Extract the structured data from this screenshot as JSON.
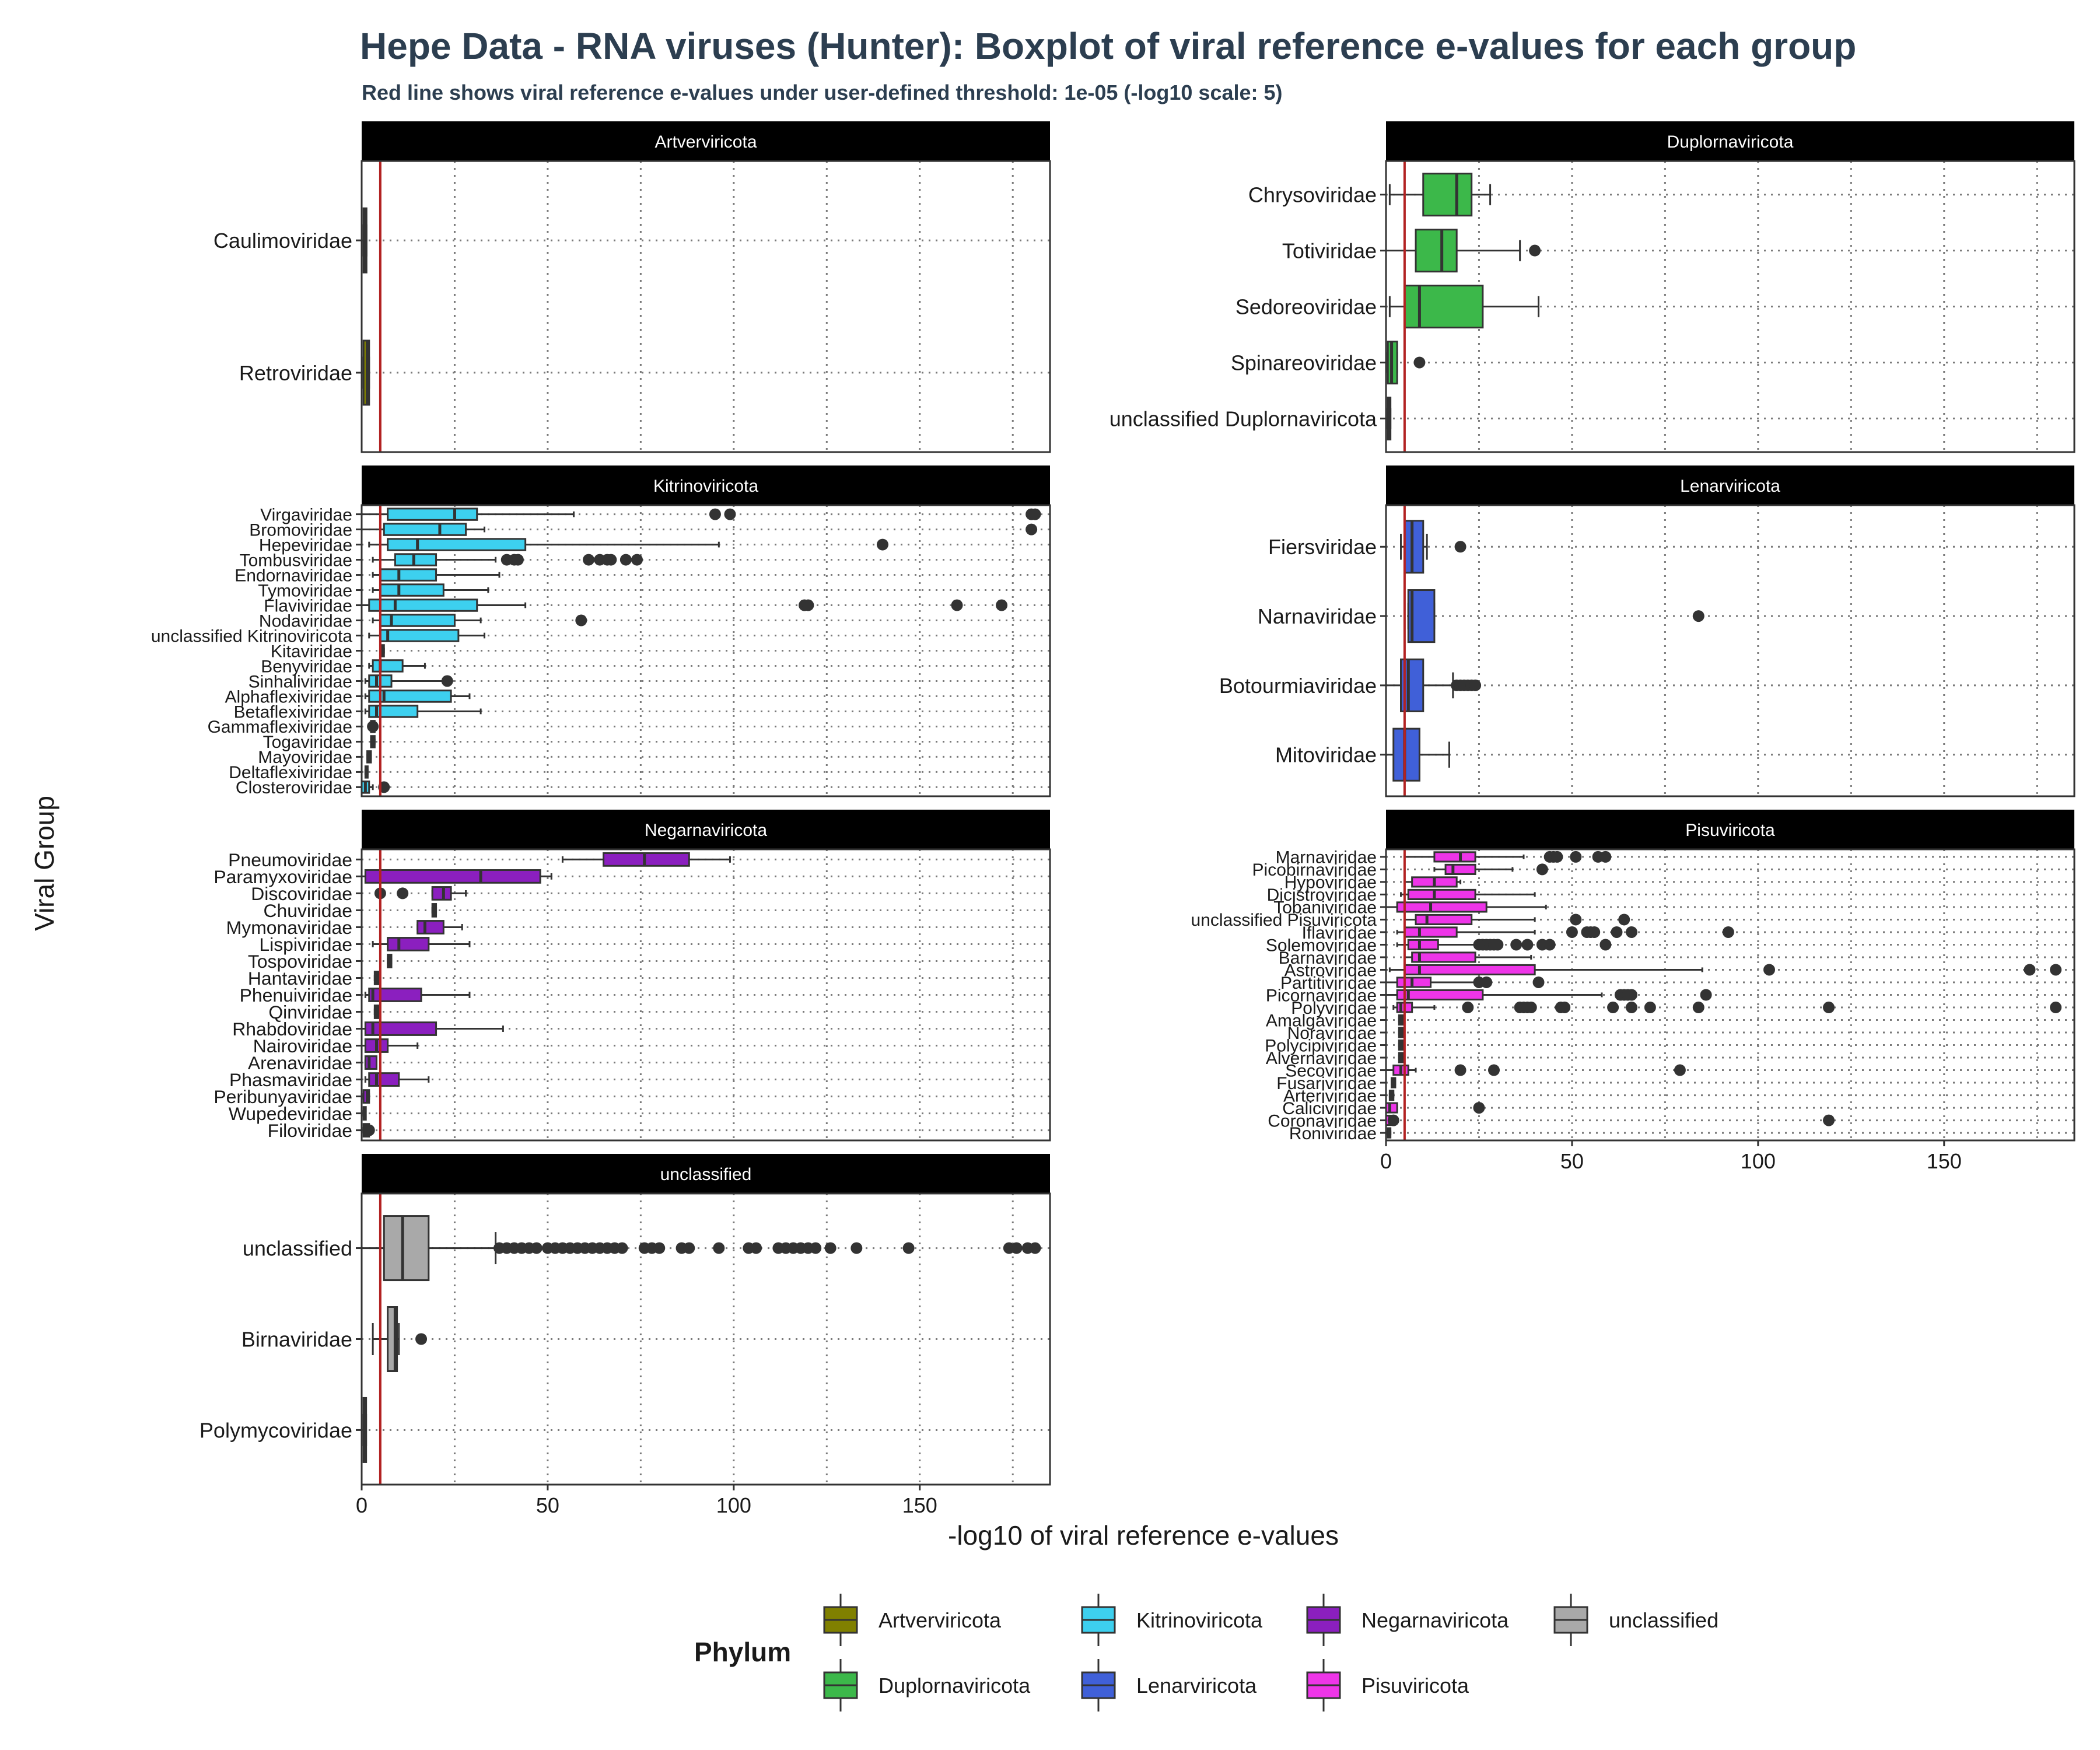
{
  "title": "Hepe Data - RNA viruses (Hunter): Boxplot of viral reference e-values for each group",
  "subtitle": "Red line shows viral reference e-values under user-defined threshold: 1e-05 (-log10 scale: 5)",
  "chart_data": {
    "type": "boxplot",
    "orientation": "horizontal",
    "xlabel": "-log10 of viral reference e-values",
    "ylabel": "Viral Group",
    "xlim": [
      0,
      185
    ],
    "x_ticks": [
      0,
      50,
      100,
      150
    ],
    "threshold": 5,
    "threshold_color": "#b22222",
    "grid": "dotted",
    "legend": {
      "title": "Phylum",
      "position": "bottom",
      "items": [
        {
          "name": "Artverviricota",
          "color": "#808000"
        },
        {
          "name": "Kitrinoviricota",
          "color": "#3dd0ef"
        },
        {
          "name": "Negarnaviricota",
          "color": "#8b1fbf"
        },
        {
          "name": "unclassified",
          "color": "#a9a9a9"
        },
        {
          "name": "Duplornaviricota",
          "color": "#3cb84a"
        },
        {
          "name": "Lenarviricota",
          "color": "#4060d8"
        },
        {
          "name": "Pisuviricota",
          "color": "#ee35e8"
        }
      ]
    },
    "panels": [
      {
        "name": "Artverviricota",
        "color": "#808000",
        "groups": [
          {
            "label": "Caulimoviridae",
            "q1": 0.5,
            "median": 0.8,
            "q3": 1.3,
            "wl": 0.5,
            "wh": 1.3,
            "outliers": []
          },
          {
            "label": "Retroviridae",
            "q1": 0.5,
            "median": 1.5,
            "q3": 2.0,
            "wl": 0.5,
            "wh": 2.0,
            "outliers": []
          }
        ]
      },
      {
        "name": "Duplornaviricota",
        "color": "#3cb84a",
        "groups": [
          {
            "label": "Chrysoviridae",
            "q1": 10,
            "median": 19,
            "q3": 23,
            "wl": 1,
            "wh": 28,
            "outliers": []
          },
          {
            "label": "Totiviridae",
            "q1": 8,
            "median": 15,
            "q3": 19,
            "wl": 0,
            "wh": 36,
            "outliers": [
              40
            ]
          },
          {
            "label": "Sedoreoviridae",
            "q1": 5,
            "median": 9,
            "q3": 26,
            "wl": 1,
            "wh": 41,
            "outliers": []
          },
          {
            "label": "Spinareoviridae",
            "q1": 0.5,
            "median": 1.5,
            "q3": 3,
            "wl": 0.5,
            "wh": 3,
            "outliers": [
              9
            ]
          },
          {
            "label": "unclassified Duplornaviricota",
            "q1": 0.5,
            "median": 0.8,
            "q3": 1.2,
            "wl": 0.5,
            "wh": 1.2,
            "outliers": []
          }
        ]
      },
      {
        "name": "Kitrinoviricota",
        "color": "#3dd0ef",
        "groups": [
          {
            "label": "Virgaviridae",
            "q1": 7,
            "median": 25,
            "q3": 31,
            "wl": 0,
            "wh": 57,
            "outliers": [
              95,
              99,
              180,
              181
            ]
          },
          {
            "label": "Bromoviridae",
            "q1": 6,
            "median": 21,
            "q3": 28,
            "wl": 0,
            "wh": 33,
            "outliers": [
              180
            ]
          },
          {
            "label": "Hepeviridae",
            "q1": 7,
            "median": 15,
            "q3": 44,
            "wl": 2,
            "wh": 96,
            "outliers": [
              140
            ]
          },
          {
            "label": "Tombusviridae",
            "q1": 9,
            "median": 14,
            "q3": 20,
            "wl": 3,
            "wh": 36,
            "outliers": [
              39,
              41,
              42,
              61,
              64,
              66,
              67,
              71,
              74
            ]
          },
          {
            "label": "Endornaviridae",
            "q1": 5,
            "median": 10,
            "q3": 20,
            "wl": 3,
            "wh": 37,
            "outliers": []
          },
          {
            "label": "Tymoviridae",
            "q1": 5,
            "median": 10,
            "q3": 22,
            "wl": 3,
            "wh": 34,
            "outliers": []
          },
          {
            "label": "Flaviviridae",
            "q1": 2,
            "median": 9,
            "q3": 31,
            "wl": 0,
            "wh": 44,
            "outliers": [
              119,
              120,
              160,
              172
            ]
          },
          {
            "label": "Nodaviridae",
            "q1": 5,
            "median": 8,
            "q3": 25,
            "wl": 3,
            "wh": 32,
            "outliers": [
              59
            ]
          },
          {
            "label": "unclassified Kitrinoviricota",
            "q1": 5,
            "median": 7,
            "q3": 26,
            "wl": 2,
            "wh": 33,
            "outliers": []
          },
          {
            "label": "Kitaviridae",
            "q1": 5,
            "median": 5.5,
            "q3": 6,
            "wl": 5,
            "wh": 6,
            "outliers": []
          },
          {
            "label": "Benyviridae",
            "q1": 3,
            "median": 5,
            "q3": 11,
            "wl": 2,
            "wh": 17,
            "outliers": []
          },
          {
            "label": "Sinhaliviridae",
            "q1": 2,
            "median": 4,
            "q3": 8,
            "wl": 1,
            "wh": 22,
            "outliers": [
              23
            ]
          },
          {
            "label": "Alphaflexiviridae",
            "q1": 2,
            "median": 6,
            "q3": 24,
            "wl": 1,
            "wh": 29,
            "outliers": []
          },
          {
            "label": "Betaflexiviridae",
            "q1": 2,
            "median": 4,
            "q3": 15,
            "wl": 1,
            "wh": 32,
            "outliers": []
          },
          {
            "label": "Gammaflexiviridae",
            "q1": 2.5,
            "median": 3,
            "q3": 3.5,
            "wl": 2.5,
            "wh": 3.5,
            "outliers": [
              3
            ]
          },
          {
            "label": "Togaviridae",
            "q1": 2.5,
            "median": 3,
            "q3": 3.5,
            "wl": 2.5,
            "wh": 3.5,
            "outliers": []
          },
          {
            "label": "Mayoviridae",
            "q1": 1.5,
            "median": 2,
            "q3": 2.5,
            "wl": 1.5,
            "wh": 2.5,
            "outliers": []
          },
          {
            "label": "Deltaflexiviridae",
            "q1": 1,
            "median": 1.3,
            "q3": 1.6,
            "wl": 1,
            "wh": 1.6,
            "outliers": []
          },
          {
            "label": "Closteroviridae",
            "q1": 0,
            "median": 1,
            "q3": 2,
            "wl": 0,
            "wh": 3,
            "outliers": [
              6
            ]
          }
        ]
      },
      {
        "name": "Lenarviricota",
        "color": "#4060d8",
        "groups": [
          {
            "label": "Fiersviridae",
            "q1": 5,
            "median": 7,
            "q3": 10,
            "wl": 4,
            "wh": 11,
            "outliers": [
              20
            ]
          },
          {
            "label": "Narnaviridae",
            "q1": 6,
            "median": 7,
            "q3": 13,
            "wl": 6,
            "wh": 13,
            "outliers": [
              84
            ]
          },
          {
            "label": "Botourmiaviridae",
            "q1": 4,
            "median": 6,
            "q3": 10,
            "wl": 0,
            "wh": 18,
            "outliers": [
              19,
              20,
              21,
              22,
              23,
              24
            ]
          },
          {
            "label": "Mitoviridae",
            "q1": 2,
            "median": 5,
            "q3": 9,
            "wl": 0,
            "wh": 17,
            "outliers": []
          }
        ]
      },
      {
        "name": "Negarnaviricota",
        "color": "#8b1fbf",
        "groups": [
          {
            "label": "Pneumoviridae",
            "q1": 65,
            "median": 76,
            "q3": 88,
            "wl": 54,
            "wh": 99,
            "outliers": []
          },
          {
            "label": "Paramyxoviridae",
            "q1": 1,
            "median": 32,
            "q3": 48,
            "wl": 0,
            "wh": 51,
            "outliers": []
          },
          {
            "label": "Discoviridae",
            "q1": 19,
            "median": 22,
            "q3": 24,
            "wl": 19,
            "wh": 28,
            "outliers": [
              5,
              11
            ]
          },
          {
            "label": "Chuviridae",
            "q1": 19,
            "median": 19.5,
            "q3": 20,
            "wl": 19,
            "wh": 20,
            "outliers": []
          },
          {
            "label": "Mymonaviridae",
            "q1": 15,
            "median": 17,
            "q3": 22,
            "wl": 15,
            "wh": 27,
            "outliers": []
          },
          {
            "label": "Lispiviridae",
            "q1": 7,
            "median": 10,
            "q3": 18,
            "wl": 3,
            "wh": 29,
            "outliers": []
          },
          {
            "label": "Tospoviridae",
            "q1": 7,
            "median": 7.5,
            "q3": 8,
            "wl": 7,
            "wh": 8,
            "outliers": []
          },
          {
            "label": "Hantaviridae",
            "q1": 3.5,
            "median": 4,
            "q3": 4.5,
            "wl": 3.5,
            "wh": 4.5,
            "outliers": []
          },
          {
            "label": "Phenuiviridae",
            "q1": 2,
            "median": 3,
            "q3": 16,
            "wl": 1,
            "wh": 29,
            "outliers": []
          },
          {
            "label": "Qinviridae",
            "q1": 3.5,
            "median": 4,
            "q3": 4.5,
            "wl": 3.5,
            "wh": 4.5,
            "outliers": []
          },
          {
            "label": "Rhabdoviridae",
            "q1": 1,
            "median": 3,
            "q3": 20,
            "wl": 0,
            "wh": 38,
            "outliers": []
          },
          {
            "label": "Nairoviridae",
            "q1": 1,
            "median": 4,
            "q3": 7,
            "wl": 0,
            "wh": 15,
            "outliers": []
          },
          {
            "label": "Arenaviridae",
            "q1": 1,
            "median": 2,
            "q3": 4,
            "wl": 1,
            "wh": 4,
            "outliers": []
          },
          {
            "label": "Phasmaviridae",
            "q1": 2,
            "median": 4,
            "q3": 10,
            "wl": 1,
            "wh": 18,
            "outliers": []
          },
          {
            "label": "Peribunyaviridae",
            "q1": 0.5,
            "median": 1.5,
            "q3": 2,
            "wl": 0.5,
            "wh": 2,
            "outliers": []
          },
          {
            "label": "Wupedeviridae",
            "q1": 0.5,
            "median": 0.7,
            "q3": 1,
            "wl": 0.5,
            "wh": 1,
            "outliers": []
          },
          {
            "label": "Filoviridae",
            "q1": 0.5,
            "median": 1,
            "q3": 2,
            "wl": 0.5,
            "wh": 2,
            "outliers": [
              2
            ]
          }
        ]
      },
      {
        "name": "Pisuviricota",
        "color": "#ee35e8",
        "groups": [
          {
            "label": "Marnaviridae",
            "q1": 13,
            "median": 20,
            "q3": 24,
            "wl": 5,
            "wh": 37,
            "outliers": [
              44,
              45,
              46,
              51,
              57,
              59
            ]
          },
          {
            "label": "Picobirnaviridae",
            "q1": 16,
            "median": 18,
            "q3": 24,
            "wl": 13,
            "wh": 34,
            "outliers": [
              42
            ]
          },
          {
            "label": "Hypoviridae",
            "q1": 7,
            "median": 13,
            "q3": 19,
            "wl": 5,
            "wh": 20,
            "outliers": []
          },
          {
            "label": "Dicistroviridae",
            "q1": 6,
            "median": 13,
            "q3": 24,
            "wl": 4,
            "wh": 40,
            "outliers": []
          },
          {
            "label": "Tobaniviridae",
            "q1": 3,
            "median": 12,
            "q3": 27,
            "wl": 0,
            "wh": 43,
            "outliers": []
          },
          {
            "label": "unclassified Pisuviricota",
            "q1": 8,
            "median": 11,
            "q3": 23,
            "wl": 5,
            "wh": 40,
            "outliers": [
              51,
              64
            ]
          },
          {
            "label": "Iflaviridae",
            "q1": 5,
            "median": 9,
            "q3": 19,
            "wl": 3,
            "wh": 40,
            "outliers": [
              50,
              54,
              55,
              56,
              62,
              66,
              92
            ]
          },
          {
            "label": "Solemoviridae",
            "q1": 6,
            "median": 9,
            "q3": 14,
            "wl": 3,
            "wh": 24,
            "outliers": [
              25,
              26,
              27,
              28,
              29,
              30,
              35,
              38,
              42,
              44,
              59
            ]
          },
          {
            "label": "Barnaviridae",
            "q1": 7,
            "median": 9,
            "q3": 24,
            "wl": 5,
            "wh": 39,
            "outliers": []
          },
          {
            "label": "Astroviridae",
            "q1": 5,
            "median": 9,
            "q3": 40,
            "wl": 1,
            "wh": 85,
            "outliers": [
              103,
              173,
              180
            ]
          },
          {
            "label": "Partitiviridae",
            "q1": 3,
            "median": 7,
            "q3": 12,
            "wl": 0,
            "wh": 24,
            "outliers": [
              25,
              27,
              41
            ]
          },
          {
            "label": "Picornaviridae",
            "q1": 3,
            "median": 6,
            "q3": 26,
            "wl": 0,
            "wh": 58,
            "outliers": [
              63,
              64,
              65,
              66,
              86
            ]
          },
          {
            "label": "Polyviridae",
            "q1": 3,
            "median": 4,
            "q3": 7,
            "wl": 2,
            "wh": 13,
            "outliers": [
              22,
              36,
              37,
              38,
              39,
              47,
              48,
              61,
              66,
              71,
              84,
              119,
              180
            ]
          },
          {
            "label": "Amalgaviridae",
            "q1": 3.5,
            "median": 4,
            "q3": 4.5,
            "wl": 3.5,
            "wh": 4.5,
            "outliers": []
          },
          {
            "label": "Noraviridae",
            "q1": 3.5,
            "median": 4,
            "q3": 4.5,
            "wl": 3.5,
            "wh": 4.5,
            "outliers": []
          },
          {
            "label": "Polycipiviridae",
            "q1": 3.5,
            "median": 4,
            "q3": 4.5,
            "wl": 3.5,
            "wh": 4.5,
            "outliers": []
          },
          {
            "label": "Alvernaviridae",
            "q1": 3.5,
            "median": 4,
            "q3": 4.5,
            "wl": 3.5,
            "wh": 4.5,
            "outliers": []
          },
          {
            "label": "Secoviridae",
            "q1": 2,
            "median": 4,
            "q3": 6,
            "wl": 0,
            "wh": 8,
            "outliers": [
              20,
              29,
              79
            ]
          },
          {
            "label": "Fusariviridae",
            "q1": 1.5,
            "median": 2,
            "q3": 2.5,
            "wl": 1.5,
            "wh": 2.5,
            "outliers": []
          },
          {
            "label": "Arteriviridae",
            "q1": 1,
            "median": 1.5,
            "q3": 2,
            "wl": 1,
            "wh": 2,
            "outliers": []
          },
          {
            "label": "Caliciviridae",
            "q1": 0,
            "median": 1,
            "q3": 3,
            "wl": 0,
            "wh": 3,
            "outliers": [
              25
            ]
          },
          {
            "label": "Coronaviridae",
            "q1": 0,
            "median": 1,
            "q3": 2,
            "wl": 0,
            "wh": 2,
            "outliers": [
              2,
              119
            ]
          },
          {
            "label": "Roniviridae",
            "q1": 0.5,
            "median": 0.8,
            "q3": 1.2,
            "wl": 0.5,
            "wh": 1.2,
            "outliers": []
          }
        ]
      },
      {
        "name": "unclassified",
        "color": "#a9a9a9",
        "groups": [
          {
            "label": "unclassified",
            "q1": 6,
            "median": 11,
            "q3": 18,
            "wl": 0,
            "wh": 36,
            "outliers": [
              37,
              39,
              41,
              43,
              45,
              47,
              50,
              52,
              54,
              56,
              58,
              60,
              62,
              64,
              66,
              68,
              70,
              76,
              78,
              80,
              86,
              88,
              96,
              104,
              106,
              112,
              114,
              116,
              118,
              120,
              122,
              126,
              133,
              147,
              174,
              176,
              179,
              181
            ]
          },
          {
            "label": "Birnaviridae",
            "q1": 7,
            "median": 9,
            "q3": 9.5,
            "wl": 3,
            "wh": 10,
            "outliers": [
              16
            ]
          },
          {
            "label": "Polymycoviridae",
            "q1": 0.5,
            "median": 0.8,
            "q3": 1.2,
            "wl": 0.5,
            "wh": 1.2,
            "outliers": []
          }
        ]
      }
    ]
  }
}
